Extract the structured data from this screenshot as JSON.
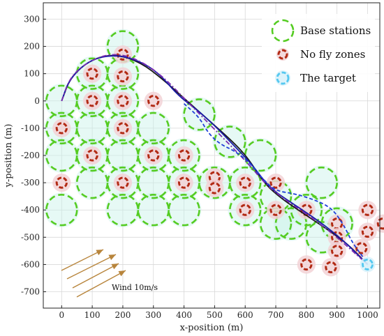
{
  "chart_data": {
    "type": "scatter",
    "xlabel": "x-position (m)",
    "ylabel": "y-position (m)",
    "xlim": [
      -60,
      1040
    ],
    "ylim": [
      -760,
      360
    ],
    "xticks": [
      0,
      100,
      200,
      300,
      400,
      500,
      600,
      700,
      800,
      900,
      1000
    ],
    "yticks": [
      300,
      200,
      100,
      0,
      -100,
      -200,
      -300,
      -400,
      -500,
      -600,
      -700
    ],
    "grid": true,
    "legend_position": "top-right",
    "legend": [
      {
        "label": "Base stations",
        "kind": "base"
      },
      {
        "label": "No fly zones",
        "kind": "nofly"
      },
      {
        "label": "The target",
        "kind": "target"
      }
    ],
    "colors": {
      "base": "#55cc22",
      "base_halo": "#c8f2e8",
      "nofly": "#b22a14",
      "nofly_halo": "#f2d2d6",
      "target": "#55c8f0",
      "path_main": "#1a1a1a",
      "path_ref": "#1a1aa8",
      "path_alt": "#7a2bb0",
      "path_dashed": "#1f3fd8",
      "wind": "#b8853c",
      "grid": "#d8d8d8"
    },
    "wind_label": "Wind 10m/s",
    "base_stations": [
      [
        200,
        200
      ],
      [
        0,
        0
      ],
      [
        100,
        100
      ],
      [
        200,
        100
      ],
      [
        200,
        0
      ],
      [
        100,
        0
      ],
      [
        0,
        -100
      ],
      [
        100,
        -100
      ],
      [
        200,
        -100
      ],
      [
        0,
        -200
      ],
      [
        100,
        -200
      ],
      [
        200,
        -200
      ],
      [
        300,
        -200
      ],
      [
        400,
        -200
      ],
      [
        100,
        -300
      ],
      [
        200,
        -300
      ],
      [
        300,
        -300
      ],
      [
        400,
        -300
      ],
      [
        500,
        -300
      ],
      [
        0,
        -400
      ],
      [
        200,
        -400
      ],
      [
        300,
        -400
      ],
      [
        400,
        -400
      ],
      [
        600,
        -400
      ],
      [
        800,
        -400
      ],
      [
        300,
        -100
      ],
      [
        450,
        -50
      ],
      [
        550,
        -150
      ],
      [
        600,
        -300
      ],
      [
        650,
        -200
      ],
      [
        700,
        -350
      ],
      [
        700,
        -450
      ],
      [
        750,
        -450
      ],
      [
        850,
        -500
      ],
      [
        850,
        -300
      ],
      [
        900,
        -450
      ]
    ],
    "no_fly_zones": [
      [
        200,
        170
      ],
      [
        100,
        100
      ],
      [
        200,
        90
      ],
      [
        0,
        -100
      ],
      [
        100,
        0
      ],
      [
        200,
        0
      ],
      [
        300,
        0
      ],
      [
        200,
        -100
      ],
      [
        100,
        -200
      ],
      [
        300,
        -200
      ],
      [
        400,
        -200
      ],
      [
        0,
        -300
      ],
      [
        200,
        -300
      ],
      [
        400,
        -300
      ],
      [
        500,
        -280
      ],
      [
        500,
        -320
      ],
      [
        600,
        -300
      ],
      [
        700,
        -300
      ],
      [
        600,
        -400
      ],
      [
        700,
        -400
      ],
      [
        800,
        -400
      ],
      [
        1000,
        -400
      ],
      [
        900,
        -450
      ],
      [
        900,
        -500
      ],
      [
        900,
        -550
      ],
      [
        1000,
        -480
      ],
      [
        1050,
        -450
      ],
      [
        800,
        -600
      ],
      [
        880,
        -610
      ],
      [
        980,
        -540
      ]
    ],
    "target": [
      1000,
      -600
    ],
    "paths": [
      {
        "style": "solid",
        "color_key": "path_main",
        "points": [
          [
            0,
            0
          ],
          [
            30,
            90
          ],
          [
            100,
            155
          ],
          [
            180,
            172
          ],
          [
            260,
            140
          ],
          [
            330,
            80
          ],
          [
            400,
            10
          ],
          [
            480,
            -70
          ],
          [
            560,
            -150
          ],
          [
            610,
            -210
          ],
          [
            660,
            -300
          ],
          [
            720,
            -360
          ],
          [
            800,
            -420
          ],
          [
            880,
            -480
          ],
          [
            940,
            -530
          ],
          [
            1000,
            -600
          ]
        ]
      },
      {
        "style": "solid",
        "color_key": "path_ref",
        "points": [
          [
            0,
            0
          ],
          [
            25,
            80
          ],
          [
            90,
            150
          ],
          [
            170,
            170
          ],
          [
            250,
            150
          ],
          [
            320,
            100
          ],
          [
            380,
            20
          ],
          [
            440,
            -30
          ],
          [
            500,
            -90
          ],
          [
            560,
            -160
          ],
          [
            620,
            -230
          ],
          [
            680,
            -320
          ],
          [
            760,
            -380
          ],
          [
            840,
            -440
          ],
          [
            920,
            -510
          ],
          [
            1000,
            -600
          ]
        ]
      },
      {
        "style": "dashdot",
        "color_key": "path_alt",
        "points": [
          [
            0,
            0
          ],
          [
            30,
            95
          ],
          [
            110,
            160
          ],
          [
            190,
            175
          ],
          [
            270,
            140
          ],
          [
            340,
            80
          ],
          [
            400,
            10
          ],
          [
            470,
            -70
          ],
          [
            540,
            -150
          ],
          [
            610,
            -230
          ],
          [
            670,
            -310
          ],
          [
            740,
            -370
          ],
          [
            820,
            -430
          ],
          [
            900,
            -500
          ],
          [
            1000,
            -600
          ]
        ]
      },
      {
        "style": "dashed",
        "color_key": "path_dashed",
        "points": [
          [
            400,
            -10
          ],
          [
            450,
            -60
          ],
          [
            480,
            -120
          ],
          [
            520,
            -160
          ],
          [
            560,
            -180
          ],
          [
            610,
            -220
          ],
          [
            660,
            -290
          ],
          [
            700,
            -330
          ],
          [
            760,
            -340
          ],
          [
            820,
            -360
          ],
          [
            880,
            -390
          ],
          [
            920,
            -450
          ],
          [
            950,
            -520
          ],
          [
            990,
            -580
          ],
          [
            1000,
            -600
          ]
        ]
      }
    ]
  }
}
